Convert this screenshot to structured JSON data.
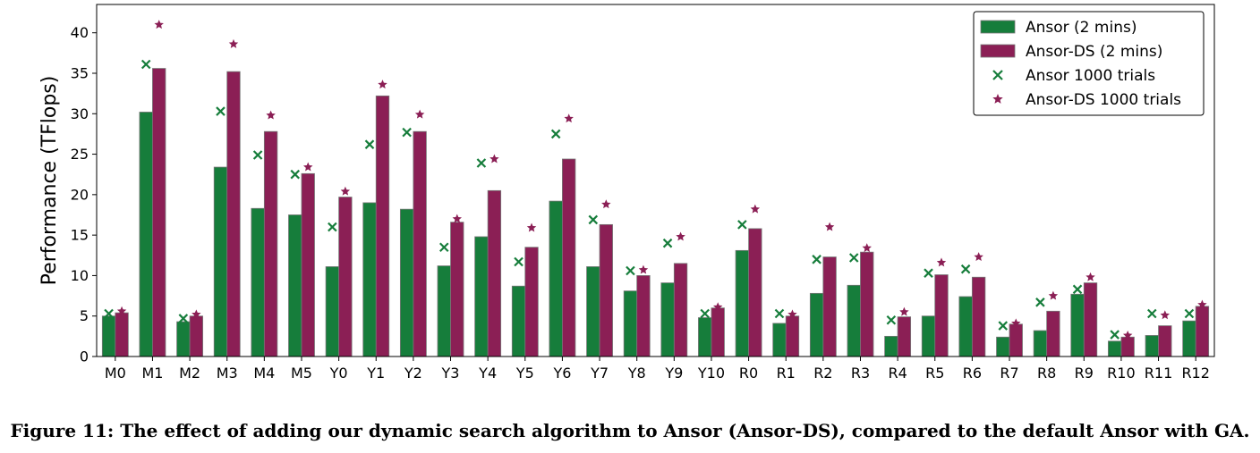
{
  "caption": "Figure 11: The effect of adding our dynamic search algorithm to Ansor (Ansor-DS), compared to the default Ansor with GA.",
  "chart_data": {
    "type": "bar",
    "ylabel": "Performance (TFlops)",
    "xlabel": "",
    "ylim": [
      0,
      43.5
    ],
    "yticks": [
      0,
      5,
      10,
      15,
      20,
      25,
      30,
      35,
      40
    ],
    "grid": false,
    "legend_position": "top-right",
    "categories": [
      "M0",
      "M1",
      "M2",
      "M3",
      "M4",
      "M5",
      "Y0",
      "Y1",
      "Y2",
      "Y3",
      "Y4",
      "Y5",
      "Y6",
      "Y7",
      "Y8",
      "Y9",
      "Y10",
      "R0",
      "R1",
      "R2",
      "R3",
      "R4",
      "R5",
      "R6",
      "R7",
      "R8",
      "R9",
      "R10",
      "R11",
      "R12"
    ],
    "series": [
      {
        "name": "Ansor (2 mins)",
        "kind": "bar",
        "color": "#167d3b",
        "values": [
          5.0,
          30.2,
          4.3,
          23.4,
          18.3,
          17.5,
          11.1,
          19.0,
          18.2,
          11.2,
          14.8,
          8.7,
          19.2,
          11.1,
          8.1,
          9.1,
          4.8,
          13.1,
          4.1,
          7.8,
          8.8,
          2.5,
          5.0,
          7.4,
          2.4,
          3.2,
          7.7,
          1.9,
          2.6,
          4.4
        ]
      },
      {
        "name": "Ansor-DS (2 mins)",
        "kind": "bar",
        "color": "#8b1f55",
        "values": [
          5.4,
          35.6,
          5.0,
          35.2,
          27.8,
          22.6,
          19.7,
          32.2,
          27.8,
          16.6,
          20.5,
          13.5,
          24.4,
          16.3,
          10.0,
          11.5,
          6.0,
          15.8,
          5.0,
          12.3,
          12.9,
          4.9,
          10.1,
          9.8,
          4.0,
          5.6,
          9.1,
          2.4,
          3.8,
          6.2
        ]
      },
      {
        "name": "Ansor 1000 trials",
        "kind": "marker-x",
        "color": "#167d3b",
        "values": [
          5.3,
          36.1,
          4.7,
          30.3,
          24.9,
          22.5,
          16.0,
          26.2,
          27.7,
          13.5,
          23.9,
          11.7,
          27.5,
          16.9,
          10.6,
          14.0,
          5.3,
          16.3,
          5.3,
          12.0,
          12.2,
          4.5,
          10.3,
          10.8,
          3.8,
          6.7,
          8.3,
          2.7,
          5.3,
          5.3
        ]
      },
      {
        "name": "Ansor-DS 1000 trials",
        "kind": "marker-star",
        "color": "#8b1f55",
        "values": [
          5.6,
          41.0,
          5.2,
          38.6,
          29.8,
          23.4,
          20.4,
          33.6,
          29.9,
          17.0,
          24.4,
          15.9,
          29.4,
          18.8,
          10.7,
          14.8,
          6.1,
          18.2,
          5.2,
          16.0,
          13.4,
          5.5,
          11.6,
          12.3,
          4.1,
          7.5,
          9.8,
          2.6,
          5.1,
          6.4
        ]
      }
    ]
  }
}
